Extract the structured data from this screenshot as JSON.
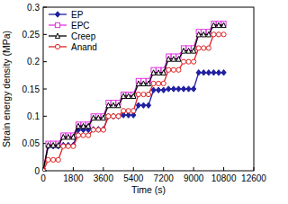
{
  "chart_data": {
    "type": "line",
    "x_label": "Time (s)",
    "y_label": "Strain energy density (MPa)",
    "x": [
      0,
      300,
      600,
      900,
      1200,
      1500,
      1800,
      2100,
      2400,
      2700,
      3000,
      3300,
      3600,
      3900,
      4200,
      4500,
      4800,
      5100,
      5400,
      5700,
      6000,
      6300,
      6600,
      6900,
      7200,
      7500,
      7800,
      8100,
      8400,
      8700,
      9000,
      9300,
      9600,
      9900,
      10200,
      10500,
      10800
    ],
    "xlim": [
      0,
      12600
    ],
    "xticks": [
      0,
      1800,
      3600,
      5400,
      7200,
      9000,
      10800,
      12600
    ],
    "ylim": [
      0,
      0.3
    ],
    "yticks": [
      0,
      0.05,
      0.1,
      0.15,
      0.2,
      0.25,
      0.3
    ],
    "legend": "upper left",
    "series": [
      {
        "name": "EP",
        "color": "#2020a0",
        "marker": "diamond",
        "values": [
          0,
          0.045,
          0.045,
          0.045,
          0.047,
          0.047,
          0.047,
          0.075,
          0.075,
          0.075,
          0.076,
          0.076,
          0.076,
          0.1,
          0.1,
          0.1,
          0.102,
          0.102,
          0.102,
          0.12,
          0.12,
          0.12,
          0.148,
          0.148,
          0.148,
          0.15,
          0.15,
          0.15,
          0.15,
          0.15,
          0.15,
          0.18,
          0.18,
          0.18,
          0.18,
          0.18,
          0.18
        ]
      },
      {
        "name": "EPC",
        "color": "#e030e0",
        "marker": "square",
        "values": [
          0,
          0.05,
          0.05,
          0.05,
          0.065,
          0.065,
          0.065,
          0.085,
          0.085,
          0.085,
          0.1,
          0.1,
          0.1,
          0.125,
          0.125,
          0.125,
          0.14,
          0.14,
          0.14,
          0.165,
          0.165,
          0.165,
          0.185,
          0.185,
          0.185,
          0.21,
          0.21,
          0.21,
          0.225,
          0.225,
          0.225,
          0.255,
          0.255,
          0.255,
          0.27,
          0.27,
          0.27
        ]
      },
      {
        "name": "Creep",
        "color": "#000000",
        "marker": "triangle",
        "values": [
          0,
          0.047,
          0.047,
          0.047,
          0.062,
          0.062,
          0.062,
          0.082,
          0.082,
          0.082,
          0.097,
          0.097,
          0.097,
          0.12,
          0.12,
          0.12,
          0.137,
          0.137,
          0.137,
          0.16,
          0.16,
          0.16,
          0.18,
          0.18,
          0.18,
          0.205,
          0.205,
          0.205,
          0.22,
          0.22,
          0.22,
          0.25,
          0.25,
          0.25,
          0.267,
          0.267,
          0.267
        ]
      },
      {
        "name": "Anand",
        "color": "#e02020",
        "marker": "circle",
        "values": [
          0,
          0.02,
          0.02,
          0.02,
          0.045,
          0.045,
          0.045,
          0.065,
          0.065,
          0.065,
          0.075,
          0.075,
          0.075,
          0.1,
          0.1,
          0.1,
          0.11,
          0.11,
          0.11,
          0.14,
          0.14,
          0.14,
          0.16,
          0.16,
          0.16,
          0.185,
          0.185,
          0.185,
          0.2,
          0.2,
          0.2,
          0.225,
          0.225,
          0.225,
          0.25,
          0.25,
          0.25
        ]
      }
    ]
  }
}
